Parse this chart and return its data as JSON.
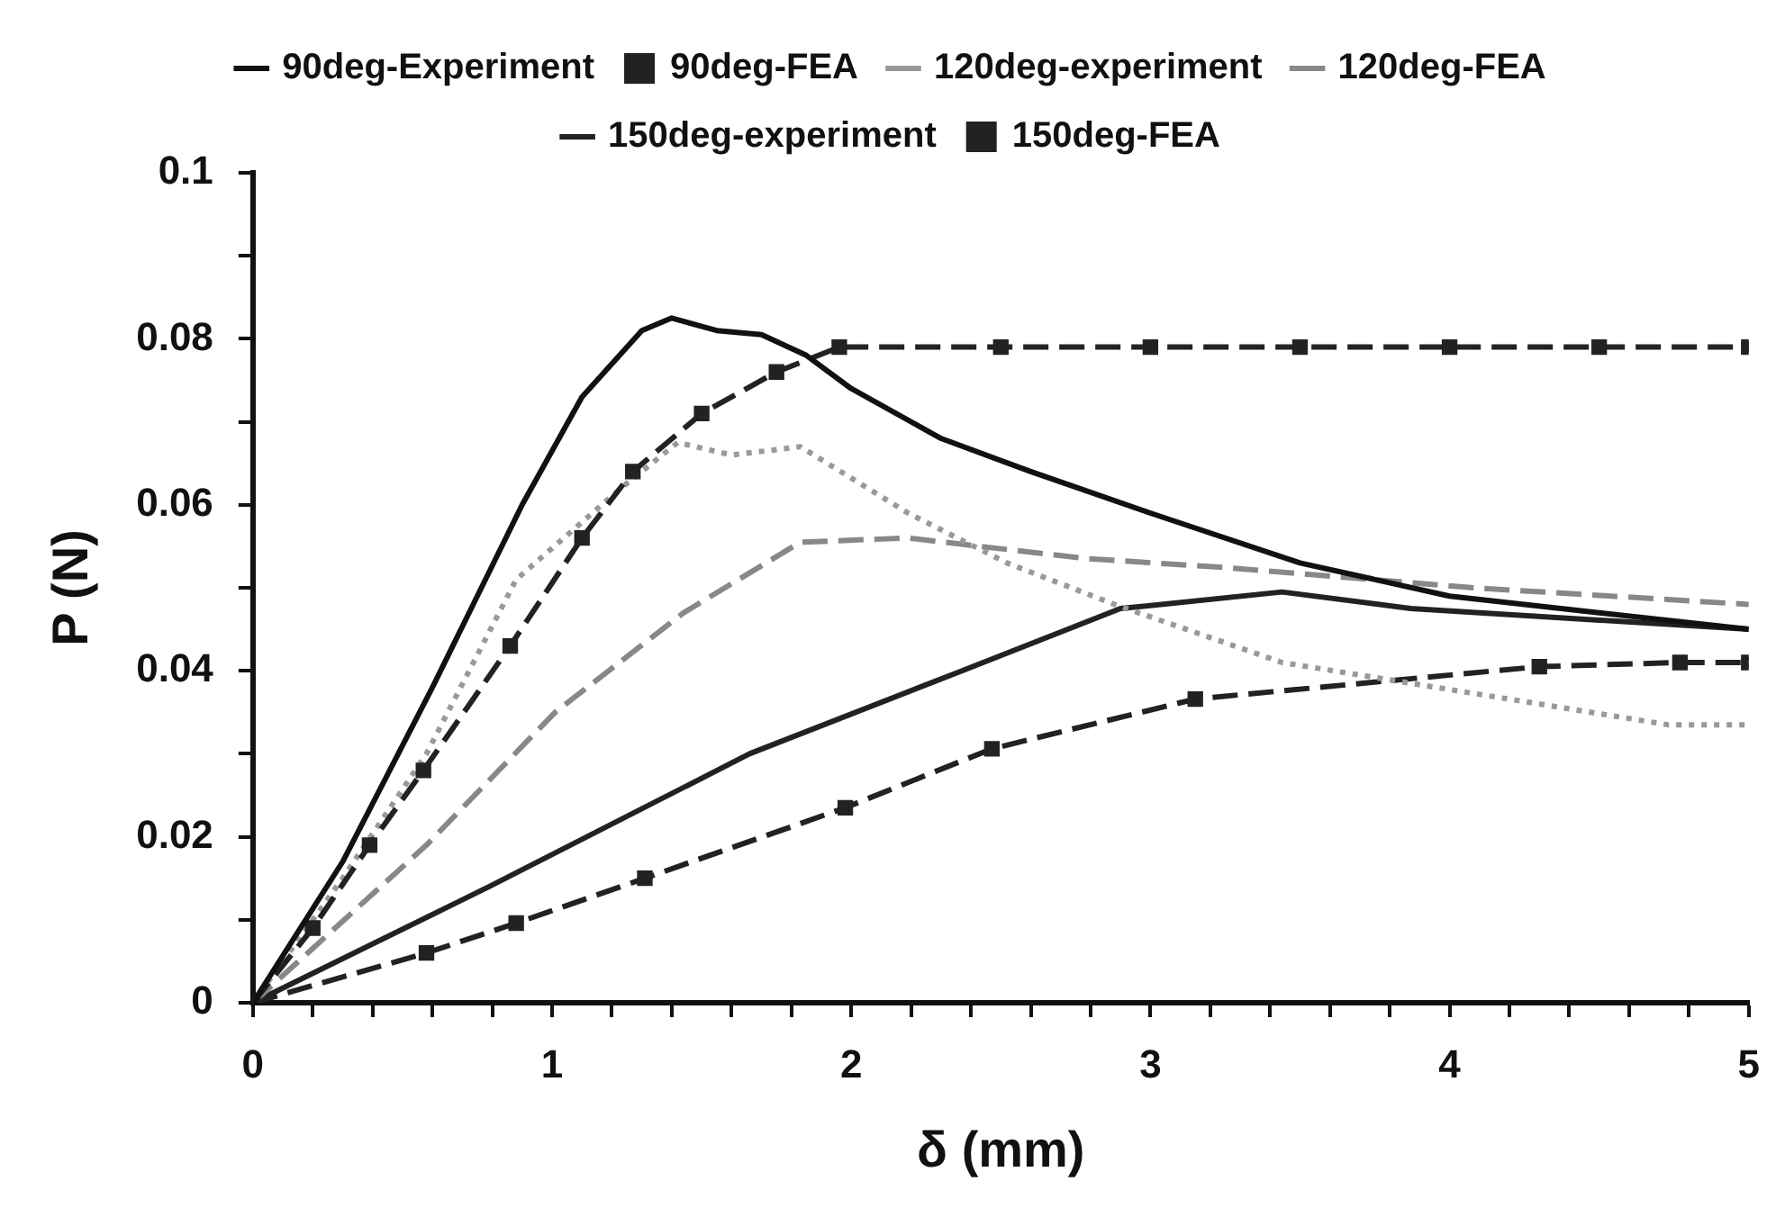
{
  "chart_data": {
    "type": "line",
    "xlabel": "δ (mm)",
    "ylabel": "P (N)",
    "xlim": [
      0,
      5
    ],
    "ylim": [
      0,
      0.1
    ],
    "xticks": [
      0,
      {
        "value": 0.2,
        "label": null
      },
      {
        "value": 0.4,
        "label": null
      },
      {
        "value": 0.6,
        "label": null
      },
      {
        "value": 0.8,
        "label": null
      },
      1,
      {
        "value": 1.2,
        "label": null
      },
      {
        "value": 1.4,
        "label": null
      },
      {
        "value": 1.6,
        "label": null
      },
      {
        "value": 1.8,
        "label": null
      },
      2,
      {
        "value": 2.2,
        "label": null
      },
      {
        "value": 2.4,
        "label": null
      },
      {
        "value": 2.6,
        "label": null
      },
      {
        "value": 2.8,
        "label": null
      },
      3,
      {
        "value": 3.2,
        "label": null
      },
      {
        "value": 3.4,
        "label": null
      },
      {
        "value": 3.6,
        "label": null
      },
      {
        "value": 3.8,
        "label": null
      },
      4,
      {
        "value": 4.2,
        "label": null
      },
      {
        "value": 4.4,
        "label": null
      },
      {
        "value": 4.6,
        "label": null
      },
      {
        "value": 4.8,
        "label": null
      },
      5
    ],
    "yticks": [
      0,
      {
        "value": 0.01,
        "label": null
      },
      0.02,
      {
        "value": 0.03,
        "label": null
      },
      0.04,
      {
        "value": 0.05,
        "label": null
      },
      0.06,
      {
        "value": 0.07,
        "label": null
      },
      0.08,
      {
        "value": 0.09,
        "label": null
      },
      0.1
    ],
    "grid": false,
    "legend": "top",
    "series": [
      {
        "name": "90deg-Experiment",
        "color": "#111111",
        "line_style": "solid",
        "marker": "none",
        "x": [
          0,
          0.3,
          0.6,
          0.9,
          1.1,
          1.3,
          1.4,
          1.55,
          1.7,
          1.85,
          2,
          2.3,
          2.6,
          3,
          3.5,
          4,
          4.5,
          5
        ],
        "values": [
          0,
          0.017,
          0.038,
          0.06,
          0.073,
          0.081,
          0.0825,
          0.081,
          0.0805,
          0.078,
          0.074,
          0.068,
          0.064,
          0.059,
          0.053,
          0.049,
          0.047,
          0.045
        ]
      },
      {
        "name": "90deg-FEA",
        "color": "#222222",
        "line_style": "dashed",
        "marker": "square",
        "x": [
          0,
          0.2,
          0.39,
          0.57,
          0.86,
          1.1,
          1.27,
          1.5,
          1.75,
          1.96,
          2.5,
          3,
          3.5,
          4,
          4.5,
          5
        ],
        "values": [
          0,
          0.009,
          0.019,
          0.028,
          0.043,
          0.056,
          0.064,
          0.071,
          0.076,
          0.079,
          0.079,
          0.079,
          0.079,
          0.079,
          0.079,
          0.079
        ]
      },
      {
        "name": "120deg-experiment",
        "color": "#999999",
        "line_style": "dotted",
        "marker": "none",
        "x": [
          0,
          0.3,
          0.58,
          0.88,
          1.23,
          1.42,
          1.6,
          1.83,
          2.19,
          2.52,
          2.88,
          3.44,
          3.87,
          4.3,
          4.73,
          5
        ],
        "values": [
          0,
          0.015,
          0.03,
          0.051,
          0.062,
          0.0675,
          0.066,
          0.067,
          0.059,
          0.053,
          0.048,
          0.041,
          0.0385,
          0.036,
          0.0335,
          0.0335
        ]
      },
      {
        "name": "120deg-FEA",
        "color": "#888888",
        "line_style": "dashed",
        "marker": "none",
        "x": [
          0,
          0.58,
          1.01,
          1.44,
          1.83,
          2.19,
          2.79,
          3.23,
          4.08,
          5
        ],
        "values": [
          0,
          0.019,
          0.035,
          0.047,
          0.0555,
          0.056,
          0.0535,
          0.0525,
          0.05,
          0.048
        ]
      },
      {
        "name": "150deg-experiment",
        "color": "#222222",
        "line_style": "solid",
        "marker": "none",
        "x": [
          0,
          0.79,
          1.66,
          2.37,
          2.9,
          3.44,
          3.87,
          5
        ],
        "values": [
          0,
          0.014,
          0.03,
          0.04,
          0.0475,
          0.0495,
          0.0475,
          0.045
        ]
      },
      {
        "name": "150deg-FEA",
        "color": "#222222",
        "line_style": "dashed",
        "marker": "square",
        "x": [
          0,
          0.58,
          0.88,
          1.31,
          1.98,
          2.47,
          3.15,
          4.3,
          4.77,
          5
        ],
        "values": [
          0,
          0.006,
          0.0096,
          0.015,
          0.0235,
          0.0306,
          0.0366,
          0.0405,
          0.041,
          0.041
        ]
      }
    ]
  }
}
